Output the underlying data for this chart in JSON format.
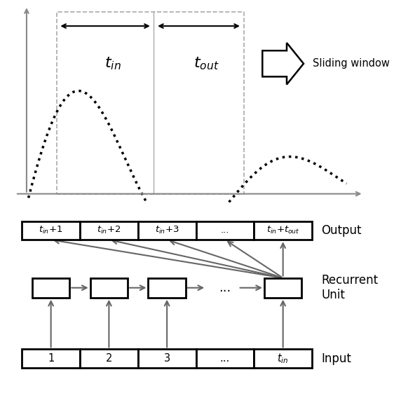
{
  "fig_width": 5.62,
  "fig_height": 5.78,
  "dpi": 100,
  "bg_color": "#ffffff",
  "top_panel": {
    "wave_color": "#000000",
    "axis_color": "#888888",
    "dash_color": "#aaaaaa",
    "arrow_color": "#000000",
    "t_in_label": "$t_{in}$",
    "t_out_label": "$t_{out}$",
    "sliding_window_label": "Sliding window"
  },
  "bottom_panel": {
    "output_labels": [
      "$t_{in}$+1",
      "$t_{in}$+2",
      "$t_{in}$+3",
      "...",
      "$t_{in}$+$t_{out}$"
    ],
    "input_labels": [
      "1",
      "2",
      "3",
      "...",
      "$t_{in}$"
    ],
    "output_title": "Output",
    "recurrent_title": "Recurrent\nUnit",
    "input_title": "Input",
    "arrow_color": "#666666"
  }
}
